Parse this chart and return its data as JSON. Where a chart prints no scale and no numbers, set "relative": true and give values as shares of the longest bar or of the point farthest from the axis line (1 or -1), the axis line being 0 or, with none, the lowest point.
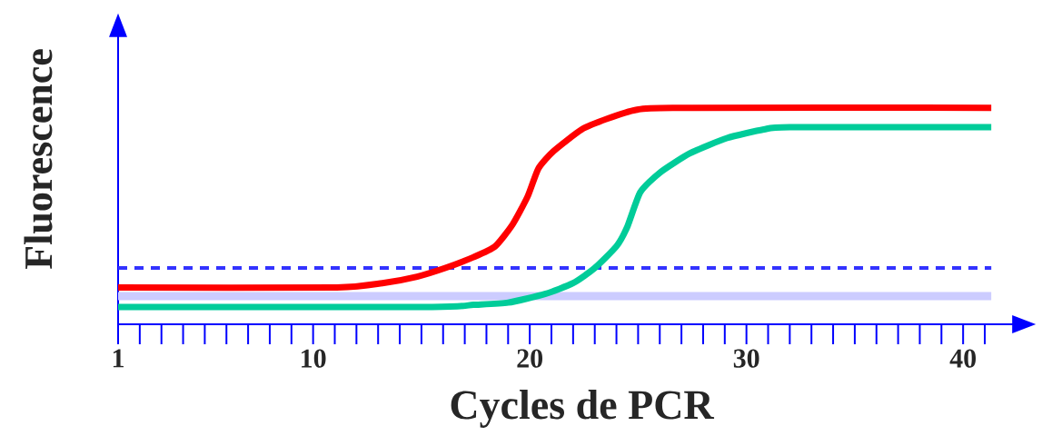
{
  "chart_data": {
    "type": "line",
    "relative": true,
    "xlabel": "Cycles de PCR",
    "ylabel": "Fluorescence",
    "xlim": [
      1,
      42.3
    ],
    "xticks": [
      1,
      10,
      20,
      30,
      40
    ],
    "series": [
      {
        "color": "#ff0000",
        "x": [
          1,
          11.1,
          13.2,
          14.8,
          16.1,
          17.4,
          18.4,
          19.2,
          19.9,
          20.4,
          21.1,
          22.4,
          23.6,
          24.9,
          26.6,
          41.3
        ],
        "values": [
          0.17,
          0.17,
          0.19,
          0.22,
          0.26,
          0.31,
          0.36,
          0.46,
          0.59,
          0.72,
          0.8,
          0.9,
          0.95,
          0.99,
          1,
          1
        ]
      },
      {
        "color": "#00cc99",
        "x": [
          1,
          15.5,
          17.4,
          19.0,
          20.7,
          22.0,
          23.0,
          24.0,
          24.5,
          25.1,
          26.0,
          27.4,
          29.1,
          30.8,
          32.0,
          41.3
        ],
        "values": [
          0.08,
          0.08,
          0.09,
          0.1,
          0.14,
          0.19,
          0.26,
          0.36,
          0.45,
          0.61,
          0.7,
          0.79,
          0.86,
          0.9,
          0.91,
          0.91
        ]
      }
    ],
    "ref_lines": [
      {
        "axis": "y",
        "value": 0.26,
        "color": "#3333ff",
        "line_style": "dashed"
      },
      {
        "axis": "y",
        "value": 0.13,
        "color": "#ccccff",
        "line_style": "solid"
      }
    ]
  }
}
